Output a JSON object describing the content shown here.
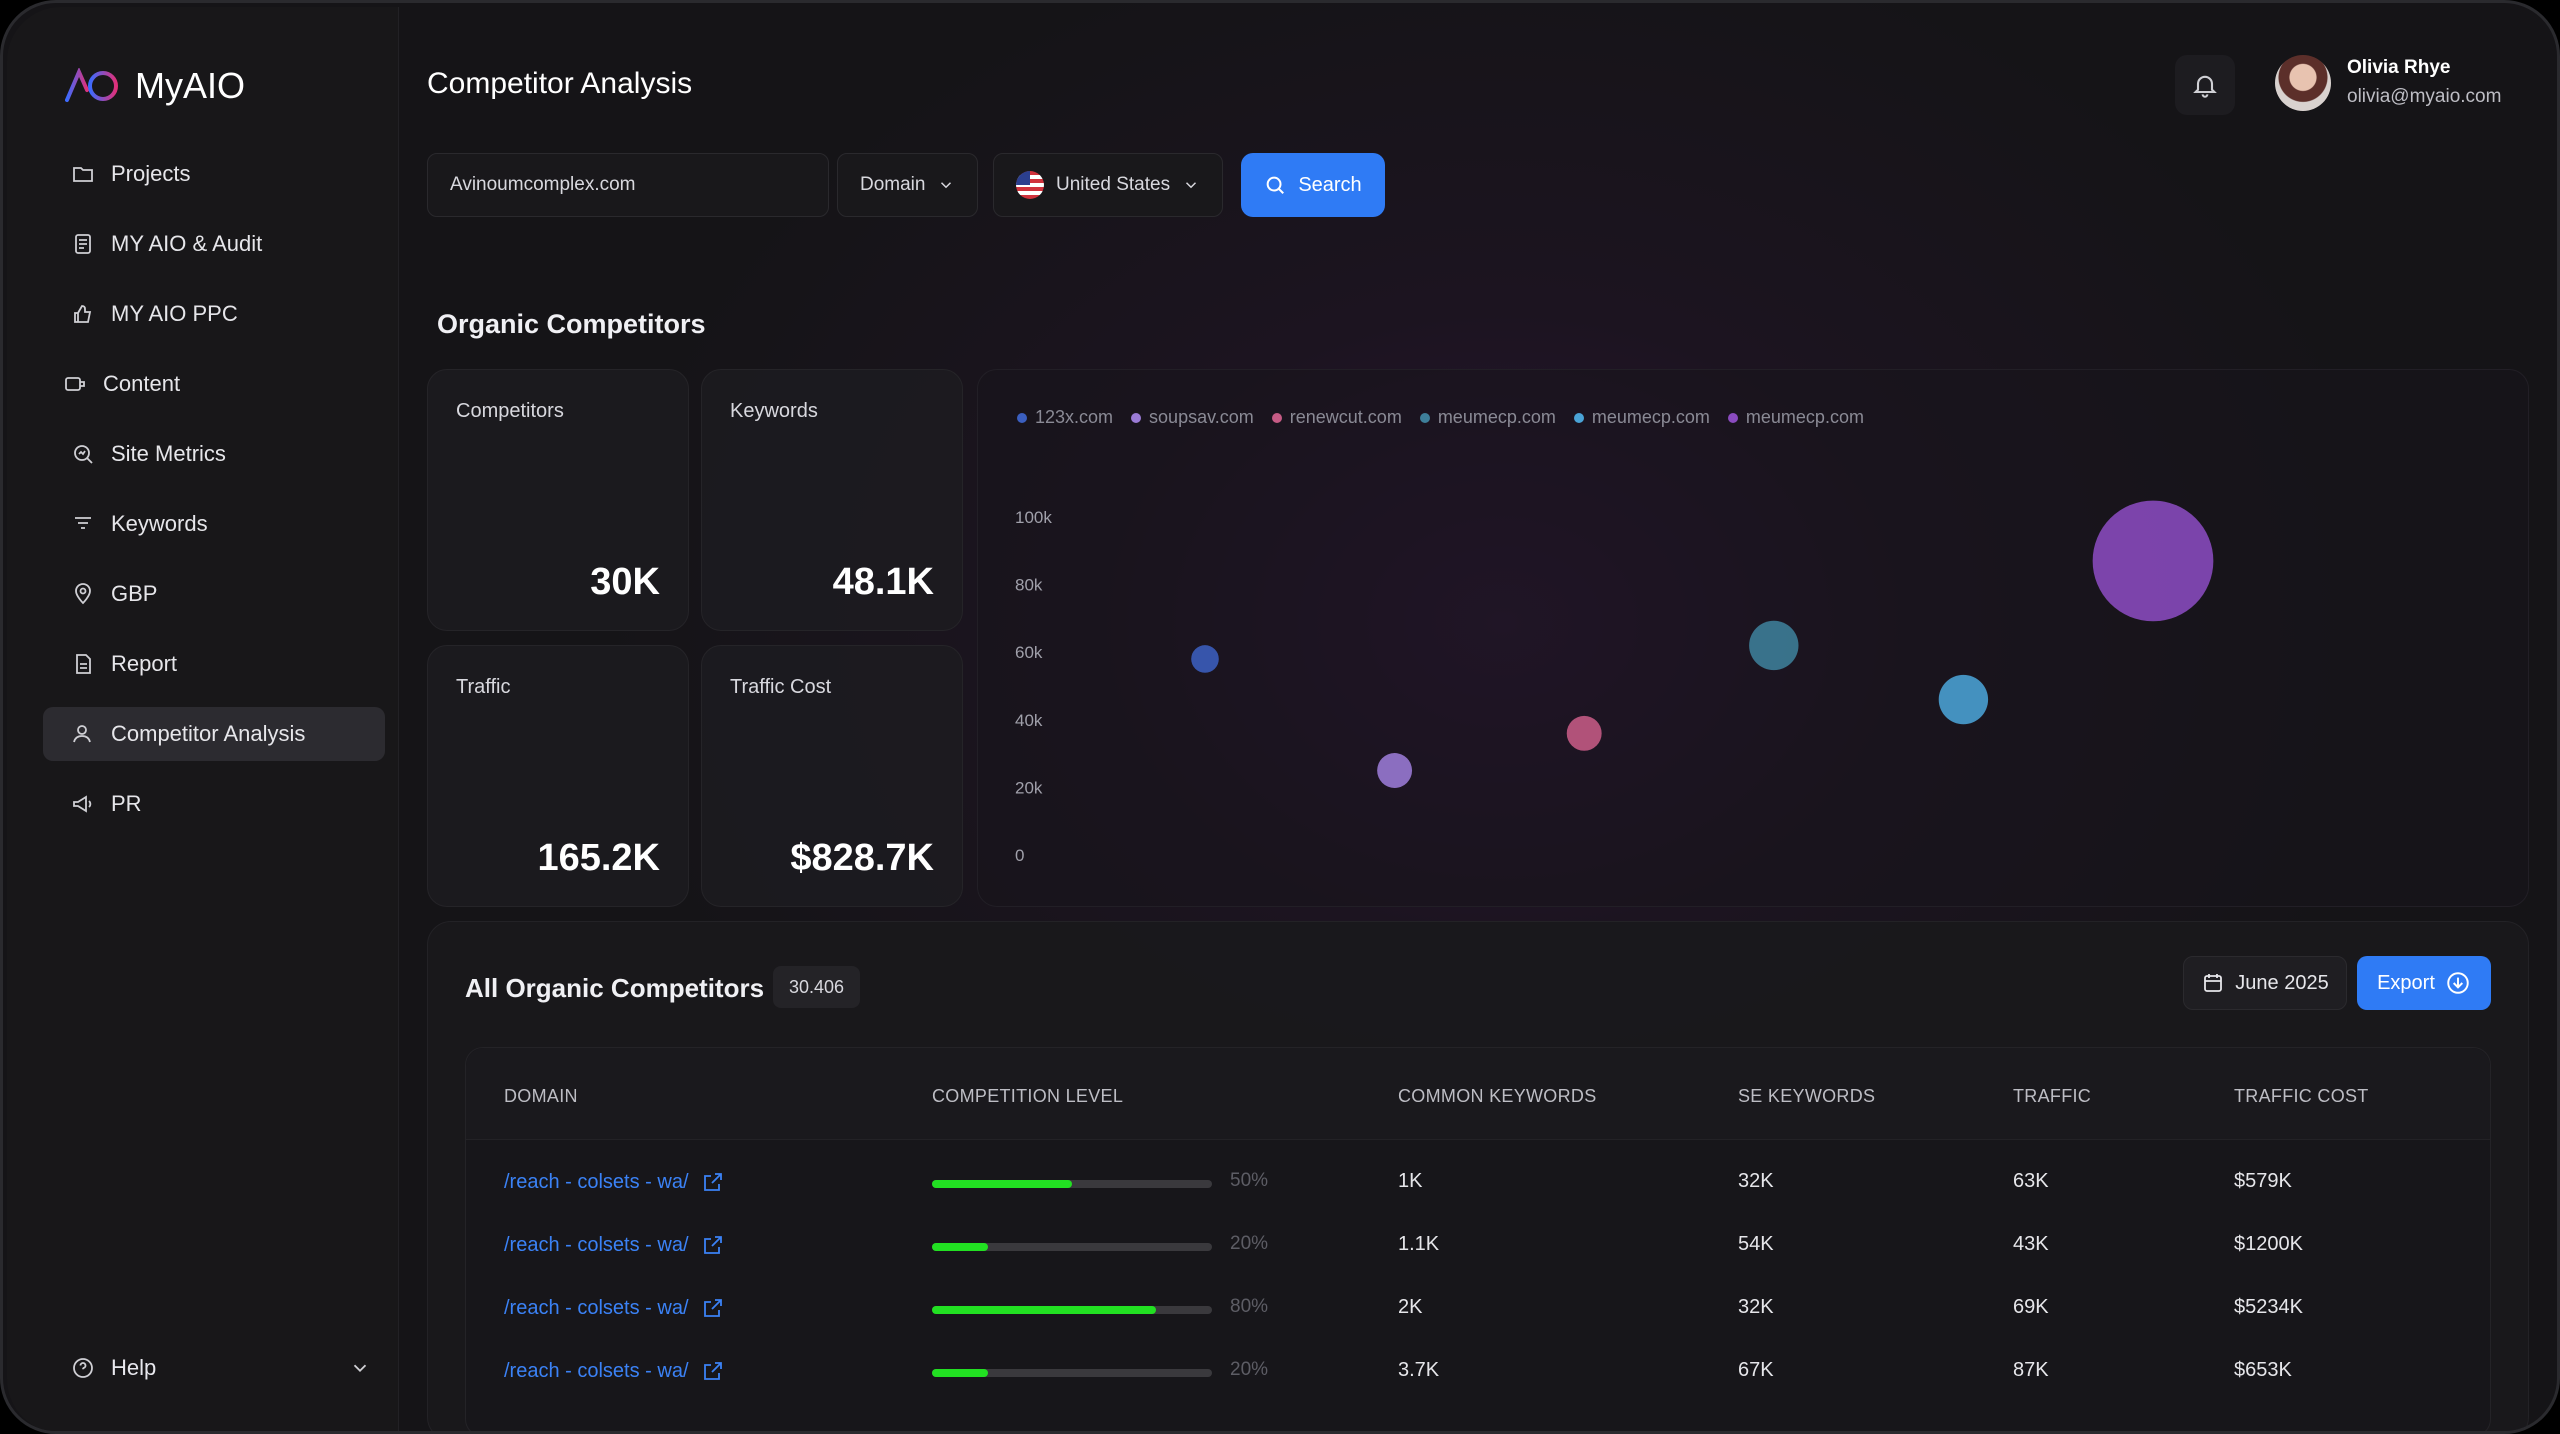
{
  "app": {
    "name": "MyAIO"
  },
  "sidebar": {
    "items": [
      {
        "label": "Projects",
        "icon": "folder-icon"
      },
      {
        "label": "MY AIO & Audit",
        "icon": "document-icon"
      },
      {
        "label": "MY AIO PPC",
        "icon": "thumbs-up-icon"
      },
      {
        "label": "Content",
        "icon": "content-icon"
      },
      {
        "label": "Site Metrics",
        "icon": "metrics-icon"
      },
      {
        "label": "Keywords",
        "icon": "keywords-icon"
      },
      {
        "label": "GBP",
        "icon": "location-pin-icon"
      },
      {
        "label": "Report",
        "icon": "report-icon"
      },
      {
        "label": "Competitor Analysis",
        "icon": "user-icon",
        "active": true
      },
      {
        "label": "PR",
        "icon": "megaphone-icon"
      }
    ],
    "help_label": "Help"
  },
  "header": {
    "title": "Competitor Analysis",
    "user_name": "Olivia Rhye",
    "user_email": "olivia@myaio.com"
  },
  "search": {
    "value": "Avinoumcomplex.com",
    "type_select": "Domain",
    "country_select": "United States",
    "button_label": "Search"
  },
  "organic": {
    "title": "Organic Competitors",
    "stats": [
      {
        "label": "Competitors",
        "value": "30K"
      },
      {
        "label": "Keywords",
        "value": "48.1K"
      },
      {
        "label": "Traffic",
        "value": "165.2K"
      },
      {
        "label": "Traffic Cost",
        "value": "$828.7K"
      }
    ]
  },
  "chart_data": {
    "type": "scatter",
    "ylim": [
      0,
      100000
    ],
    "y_ticks": [
      "100k",
      "80k",
      "60k",
      "40k",
      "20k",
      "0"
    ],
    "legend": [
      {
        "name": "123x.com",
        "color": "#3b5fbf"
      },
      {
        "name": "soupsav.com",
        "color": "#9b7bd6"
      },
      {
        "name": "renewcut.com",
        "color": "#c65b85"
      },
      {
        "name": "meumecp.com",
        "color": "#3e7f9a"
      },
      {
        "name": "meumecp.com",
        "color": "#4aa3d6"
      },
      {
        "name": "meumecp.com",
        "color": "#8a4bbf"
      }
    ],
    "points": [
      {
        "series": "123x.com",
        "x": 1,
        "y": 58000,
        "size": 1,
        "color": "#3b5fbf"
      },
      {
        "series": "soupsav.com",
        "x": 2,
        "y": 25000,
        "size": 1.6,
        "color": "#9b7bd6"
      },
      {
        "series": "renewcut.com",
        "x": 3,
        "y": 36000,
        "size": 1.6,
        "color": "#c65b85"
      },
      {
        "series": "meumecp.com",
        "x": 4,
        "y": 62000,
        "size": 3.2,
        "color": "#3e7f9a"
      },
      {
        "series": "meumecp.com",
        "x": 5,
        "y": 46000,
        "size": 3.2,
        "color": "#4aa3d6"
      },
      {
        "series": "meumecp.com",
        "x": 6,
        "y": 87000,
        "size": 8.5,
        "color": "#8a4bbf"
      }
    ]
  },
  "table": {
    "title": "All Organic Competitors",
    "count": "30.406",
    "date_label": "June 2025",
    "export_label": "Export",
    "columns": [
      "DOMAIN",
      "COMPETITION LEVEL",
      "COMMON KEYWORDS",
      "SE KEYWORDS",
      "TRAFFIC",
      "TRAFFIC COST"
    ],
    "rows": [
      {
        "domain": "/reach - colsets - wa/",
        "level": 0.5,
        "level_label": "50%",
        "common": "1K",
        "se": "32K",
        "traffic": "63K",
        "cost": "$579K"
      },
      {
        "domain": "/reach - colsets - wa/",
        "level": 0.2,
        "level_label": "20%",
        "common": "1.1K",
        "se": "54K",
        "traffic": "43K",
        "cost": "$1200K"
      },
      {
        "domain": "/reach - colsets - wa/",
        "level": 0.8,
        "level_label": "80%",
        "common": "2K",
        "se": "32K",
        "traffic": "69K",
        "cost": "$5234K"
      },
      {
        "domain": "/reach - colsets - wa/",
        "level": 0.2,
        "level_label": "20%",
        "common": "3.7K",
        "se": "67K",
        "traffic": "87K",
        "cost": "$653K"
      }
    ]
  }
}
